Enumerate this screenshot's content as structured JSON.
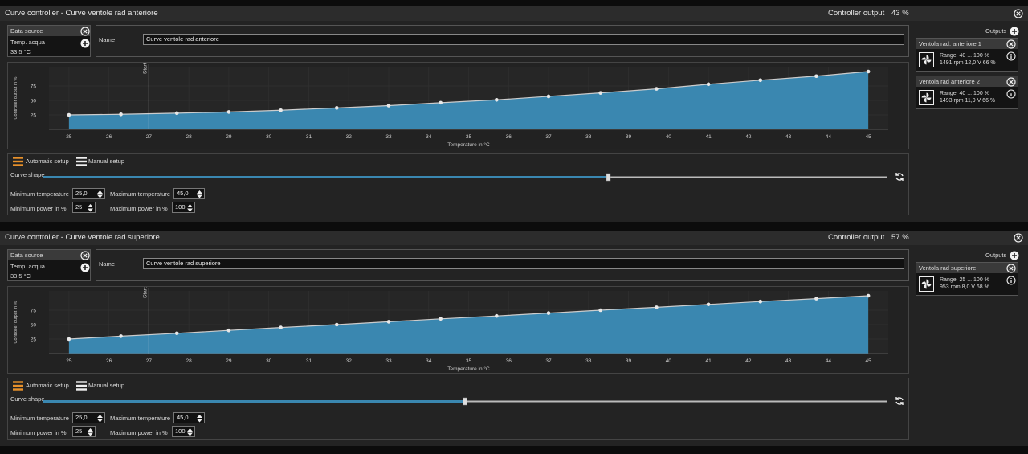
{
  "panels": [
    {
      "title": "Curve controller  -  Curve ventole rad anteriore",
      "output_label": "Controller output",
      "output_value": "43 %",
      "data_source": {
        "header": "Data source",
        "sensor": "Temp. acqua",
        "value": "33,5 °C"
      },
      "name_label": "Name",
      "name_value": "Curve ventole rad anteriore",
      "chart": {
        "type": "area",
        "y_label": "Controller output in %",
        "x_label": "Temperature in °C",
        "color": "#3a87b0",
        "x": [
          25,
          26.3,
          27.7,
          29,
          30.3,
          31.7,
          33,
          34.3,
          35.7,
          37,
          38.3,
          39.7,
          41,
          42.3,
          43.7,
          45
        ],
        "values": [
          25,
          26,
          28,
          30,
          33,
          37,
          41,
          46,
          51,
          57,
          63,
          70,
          78,
          85,
          92,
          100
        ],
        "xlim": [
          24.5,
          45.5
        ],
        "ylim": [
          0,
          100
        ],
        "xticks": [
          25,
          26,
          27,
          28,
          29,
          30,
          31,
          32,
          33,
          34,
          35,
          36,
          37,
          38,
          39,
          40,
          41,
          42,
          43,
          44,
          45
        ],
        "yticks": [
          25,
          50,
          75
        ],
        "start_marker": {
          "value": 27,
          "label": "Start"
        }
      },
      "setup": {
        "automatic": "Automatic setup",
        "manual": "Manual setup",
        "curve_shape_label": "Curve shape",
        "curve_shape": 0.67,
        "min_temp_label": "Minimum temperature",
        "min_temp": "25,0",
        "max_temp_label": "Maximum temperature",
        "max_temp": "45,0",
        "min_power_label": "Minimum power in %",
        "min_power": "25",
        "max_power_label": "Maximum power in %",
        "max_power": "100"
      },
      "outputs_label": "Outputs",
      "outputs": [
        {
          "name": "Ventola rad. anteriore 1",
          "range": "Range: 40 ... 100  %",
          "status": "1491 rpm  12,0 V  66 %"
        },
        {
          "name": "Ventola rad anteriore 2",
          "range": "Range: 40 ... 100  %",
          "status": "1493 rpm  11,9 V  66 %"
        }
      ]
    },
    {
      "title": "Curve controller  -  Curve ventole rad superiore",
      "output_label": "Controller output",
      "output_value": "57 %",
      "data_source": {
        "header": "Data source",
        "sensor": "Temp. acqua",
        "value": "33,5 °C"
      },
      "name_label": "Name",
      "name_value": "Curve ventole rad superiore",
      "chart": {
        "type": "area",
        "y_label": "Controller output in %",
        "x_label": "Temperature in °C",
        "color": "#3a87b0",
        "x": [
          25,
          26.3,
          27.7,
          29,
          30.3,
          31.7,
          33,
          34.3,
          35.7,
          37,
          38.3,
          39.7,
          41,
          42.3,
          43.7,
          45
        ],
        "values": [
          25,
          30,
          35,
          40,
          45,
          50,
          55,
          60,
          65,
          70,
          75,
          80,
          85,
          90,
          95,
          100
        ],
        "xlim": [
          24.5,
          45.5
        ],
        "ylim": [
          0,
          100
        ],
        "xticks": [
          25,
          26,
          27,
          28,
          29,
          30,
          31,
          32,
          33,
          34,
          35,
          36,
          37,
          38,
          39,
          40,
          41,
          42,
          43,
          44,
          45
        ],
        "yticks": [
          25,
          50,
          75
        ],
        "start_marker": {
          "value": 27,
          "label": "Start"
        }
      },
      "setup": {
        "automatic": "Automatic setup",
        "manual": "Manual setup",
        "curve_shape_label": "Curve shape",
        "curve_shape": 0.5,
        "min_temp_label": "Minimum temperature",
        "min_temp": "25,0",
        "max_temp_label": "Maximum temperature",
        "max_temp": "45,0",
        "min_power_label": "Minimum power in %",
        "min_power": "25",
        "max_power_label": "Maximum power in %",
        "max_power": "100"
      },
      "outputs_label": "Outputs",
      "outputs": [
        {
          "name": "Ventola rad superiore",
          "range": "Range: 25 ... 100  %",
          "status": "953 rpm  8,0 V  68 %"
        }
      ]
    }
  ]
}
